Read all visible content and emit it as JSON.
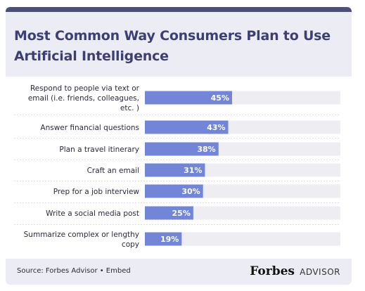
{
  "title": "Most Common Way Consumers Plan to Use Artificial Intelligence",
  "footer": {
    "source": "Source: Forbes Advisor • Embed",
    "brand": "Forbes",
    "brand_sub": "ADVISOR"
  },
  "colors": {
    "bar": "#7285d6",
    "track": "#ededf2",
    "title": "#3c3f73",
    "header_bg": "#ecedf4",
    "accent_bar": "#4c5078"
  },
  "chart_data": {
    "type": "bar",
    "orientation": "horizontal",
    "title": "Most Common Way Consumers Plan to Use Artificial Intelligence",
    "categories": [
      "Respond to people via text or email (i.e. friends, colleagues, etc. )",
      "Answer financial questions",
      "Plan a travel itinerary",
      "Craft an email",
      "Prep for a job interview",
      "Write a social media post",
      "Summarize complex or lengthy copy"
    ],
    "category_lines": [
      [
        "Respond to people via text or",
        "email (i.e. friends, colleagues,",
        "etc. )"
      ],
      [
        "Answer financial questions"
      ],
      [
        "Plan a travel itinerary"
      ],
      [
        "Craft an email"
      ],
      [
        "Prep for a job interview"
      ],
      [
        "Write a social media post"
      ],
      [
        "Summarize complex or lengthy",
        "copy"
      ]
    ],
    "values": [
      45,
      43,
      38,
      31,
      30,
      25,
      19
    ],
    "value_labels": [
      "45%",
      "43%",
      "38%",
      "31%",
      "30%",
      "25%",
      "19%"
    ],
    "unit": "%",
    "xlim": [
      0,
      100
    ],
    "grid": false,
    "legend": "none"
  }
}
